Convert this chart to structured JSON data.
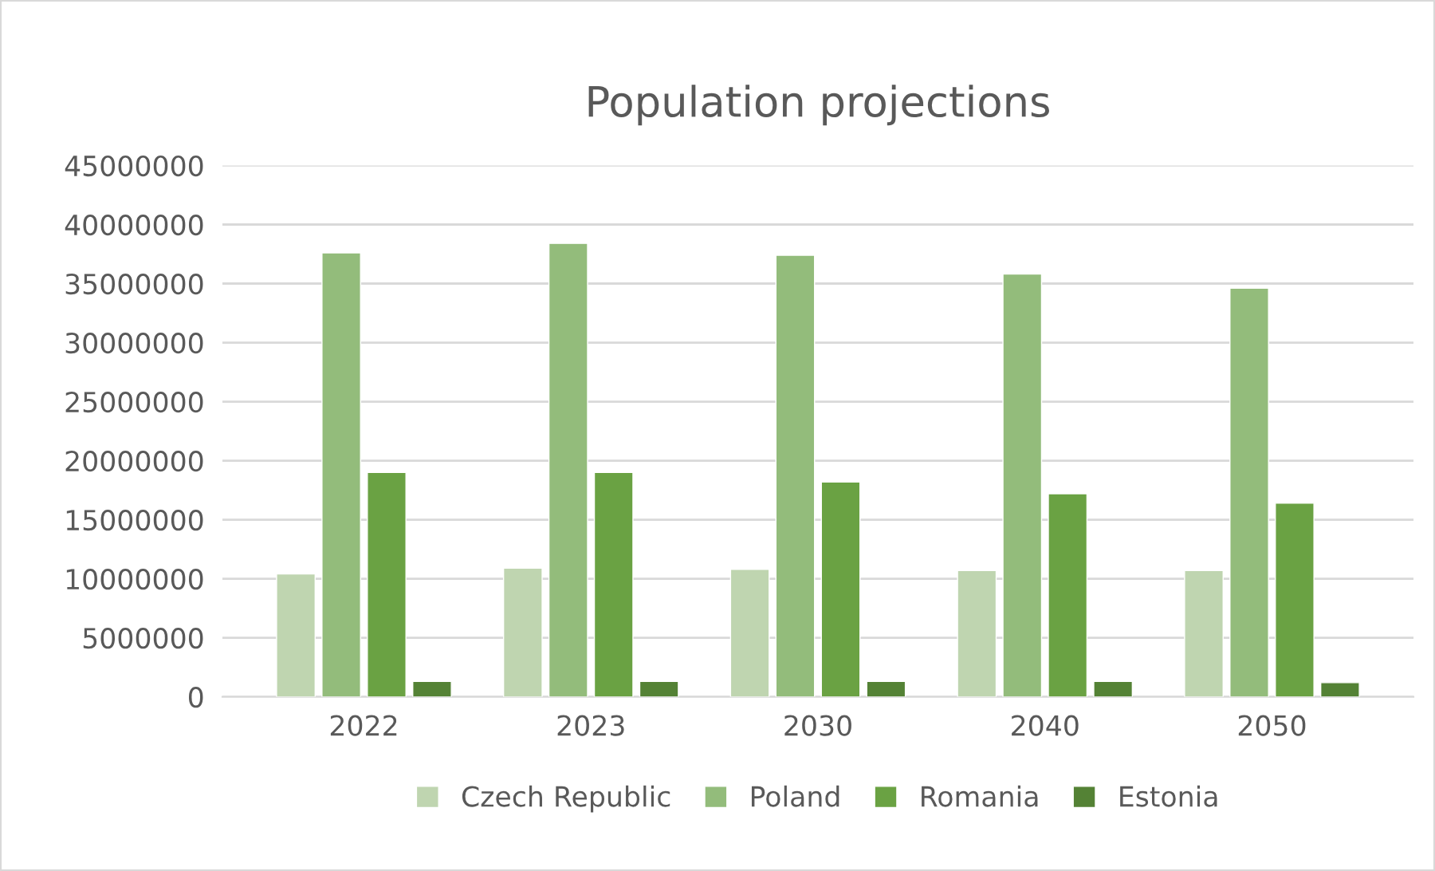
{
  "chart_data": {
    "type": "bar",
    "title": "Population projections",
    "categories": [
      "2022",
      "2023",
      "2030",
      "2040",
      "2050"
    ],
    "series": [
      {
        "name": "Czech Republic",
        "color": "#bfd5b0",
        "values": [
          10400000,
          10900000,
          10800000,
          10700000,
          10700000
        ]
      },
      {
        "name": "Poland",
        "color": "#93bc7b",
        "values": [
          37600000,
          38400000,
          37400000,
          35800000,
          34600000
        ]
      },
      {
        "name": "Romania",
        "color": "#6aa243",
        "values": [
          19000000,
          19000000,
          18200000,
          17200000,
          16400000
        ]
      },
      {
        "name": "Estonia",
        "color": "#548235",
        "values": [
          1300000,
          1300000,
          1300000,
          1300000,
          1200000
        ]
      }
    ],
    "ylim": [
      0,
      45000000
    ],
    "yticks": [
      0,
      5000000,
      10000000,
      15000000,
      20000000,
      25000000,
      30000000,
      35000000,
      40000000,
      45000000
    ],
    "grid": "y",
    "legend": "bottom"
  }
}
